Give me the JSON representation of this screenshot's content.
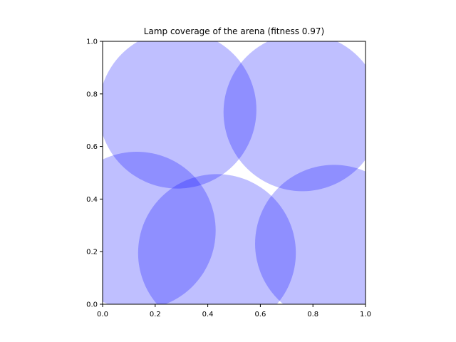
{
  "chart_data": {
    "type": "scatter",
    "title": "Lamp coverage of the arena (fitness 0.97)",
    "xlabel": "",
    "ylabel": "",
    "xlim": [
      0.0,
      1.0
    ],
    "ylim": [
      0.0,
      1.0
    ],
    "x_ticks": [
      "0.0",
      "0.2",
      "0.4",
      "0.6",
      "0.8",
      "1.0"
    ],
    "y_ticks": [
      "0.0",
      "0.2",
      "0.4",
      "0.6",
      "0.8",
      "1.0"
    ],
    "grid": false,
    "legend": "none",
    "aspect": "equal",
    "marker": "circle (radius in data units)",
    "fill_color": "#0000ff",
    "fill_alpha": 0.25,
    "circles": [
      {
        "x": 0.285,
        "y": 0.74,
        "r": 0.3
      },
      {
        "x": 0.76,
        "y": 0.73,
        "r": 0.3
      },
      {
        "x": 0.13,
        "y": 0.28,
        "r": 0.3
      },
      {
        "x": 0.435,
        "y": 0.195,
        "r": 0.3
      },
      {
        "x": 0.88,
        "y": 0.23,
        "r": 0.3
      }
    ],
    "fitness": 0.97
  }
}
